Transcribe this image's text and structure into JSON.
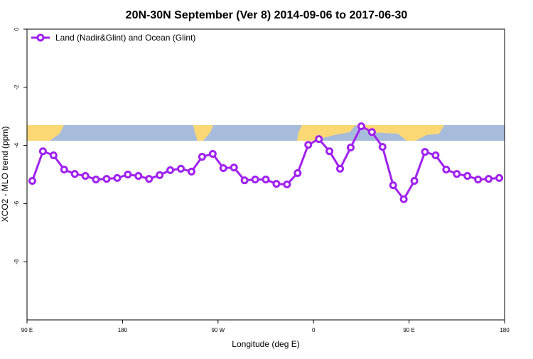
{
  "chart_data": {
    "type": "line",
    "title": "20N-30N September (Ver 8)   2014-09-06 to 2017-06-30",
    "x_label": "Longitude (deg E)",
    "y_label": "XCO2 - MLO trend (ppm)",
    "x": [
      95,
      105,
      115,
      125,
      135,
      145,
      155,
      165,
      175,
      185,
      195,
      205,
      215,
      225,
      235,
      245,
      255,
      265,
      275,
      285,
      295,
      305,
      315,
      325,
      335,
      345,
      355,
      365,
      375,
      385,
      395,
      405,
      415,
      425,
      435,
      445,
      455,
      465,
      475,
      485,
      495,
      505,
      515,
      525,
      535
    ],
    "series": [
      {
        "name": "Land (Nadir&Glint) and Ocean (Glint)",
        "color": "#a020f0",
        "values": [
          -5.22,
          -4.2,
          -4.34,
          -4.83,
          -4.98,
          -5.05,
          -5.17,
          -5.15,
          -5.12,
          -5.0,
          -5.05,
          -5.15,
          -5.02,
          -4.85,
          -4.8,
          -4.9,
          -4.39,
          -4.29,
          -4.78,
          -4.76,
          -5.2,
          -5.17,
          -5.17,
          -5.32,
          -5.34,
          -4.95,
          -3.98,
          -3.78,
          -4.2,
          -4.8,
          -4.07,
          -3.34,
          -3.54,
          -4.05,
          -5.37,
          -5.85,
          -5.22,
          -4.22,
          -4.34,
          -4.83,
          -4.98,
          -5.05,
          -5.17,
          -5.15,
          -5.12
        ]
      }
    ],
    "xlim": [
      90,
      540
    ],
    "xticks": [
      {
        "value": 90,
        "label": "90 E"
      },
      180,
      {
        "value": 270,
        "label": "90 W"
      },
      {
        "value": 360,
        "label": "0"
      },
      {
        "value": 450,
        "label": "90 E"
      },
      {
        "value": 540,
        "label": "180"
      }
    ],
    "ylim": [
      -10,
      0
    ],
    "yticks": [
      0,
      -2,
      -4,
      -6,
      -8
    ],
    "legend": "top-left"
  }
}
